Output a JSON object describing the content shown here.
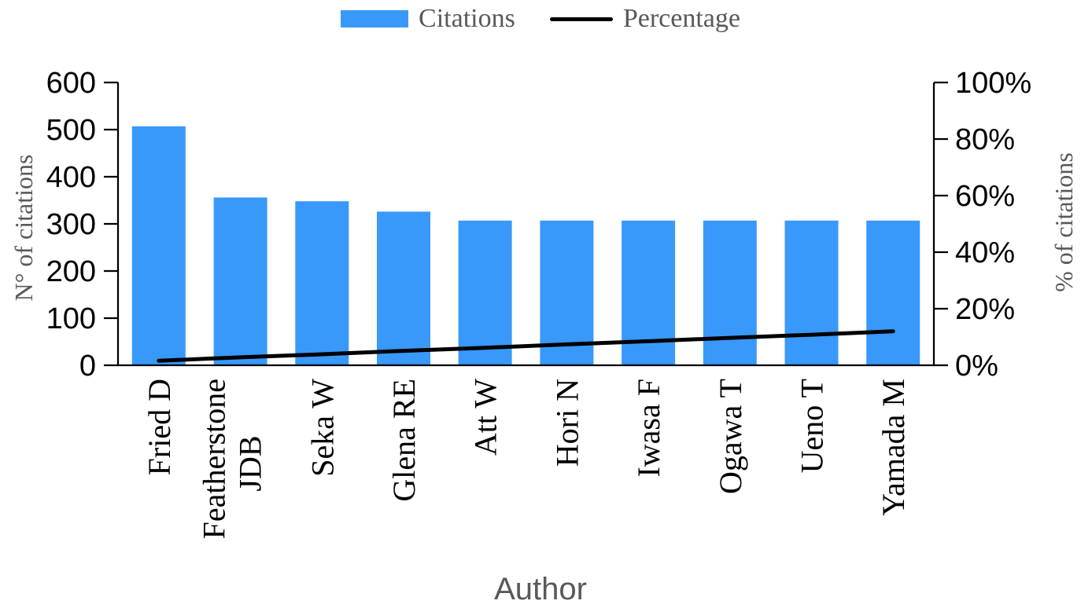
{
  "legend": {
    "items": [
      {
        "label": "Citations",
        "swatch": "bar-swatch",
        "type": "bar",
        "color": "#3899FA"
      },
      {
        "label": "Percentage",
        "swatch": "line-swatch",
        "type": "line",
        "color": "#000000"
      }
    ],
    "position": "top"
  },
  "colors": {
    "bar": "#3899FA",
    "line": "#000000",
    "axis": "#000000",
    "tick_label": "#000000",
    "category_label": "#000000",
    "gray_text": "#595959",
    "background": "#ffffff"
  },
  "chart_data": {
    "type": "combo",
    "subtypes": [
      "bar",
      "line"
    ],
    "categories": [
      "Fried D",
      "Featherstone\nJDB",
      "Seka W",
      "Glena RE",
      "Att W",
      "Hori N",
      "Iwasa F",
      "Ogawa T",
      "Ueno T",
      "Yamada M"
    ],
    "series": [
      {
        "name": "Citations",
        "type": "bar",
        "axis": "left",
        "color": "#3899FA",
        "values": [
          507,
          356,
          348,
          326,
          307,
          307,
          307,
          307,
          307,
          307
        ]
      },
      {
        "name": "Percentage",
        "type": "line",
        "axis": "right",
        "color": "#000000",
        "values_percent": [
          1.6,
          2.8,
          3.9,
          5.1,
          6.2,
          7.4,
          8.5,
          9.7,
          10.8,
          12.0
        ]
      }
    ],
    "left_axis": {
      "title": "N° of citations",
      "ticks": [
        0,
        100,
        200,
        300,
        400,
        500,
        600
      ],
      "range": [
        0,
        600
      ]
    },
    "right_axis": {
      "title": "% of citations",
      "ticks": [
        "0%",
        "20%",
        "40%",
        "60%",
        "80%",
        "100%"
      ],
      "range": [
        0,
        100
      ]
    },
    "x_axis": {
      "title": "Author"
    },
    "grid": false,
    "legend_position": "top"
  }
}
